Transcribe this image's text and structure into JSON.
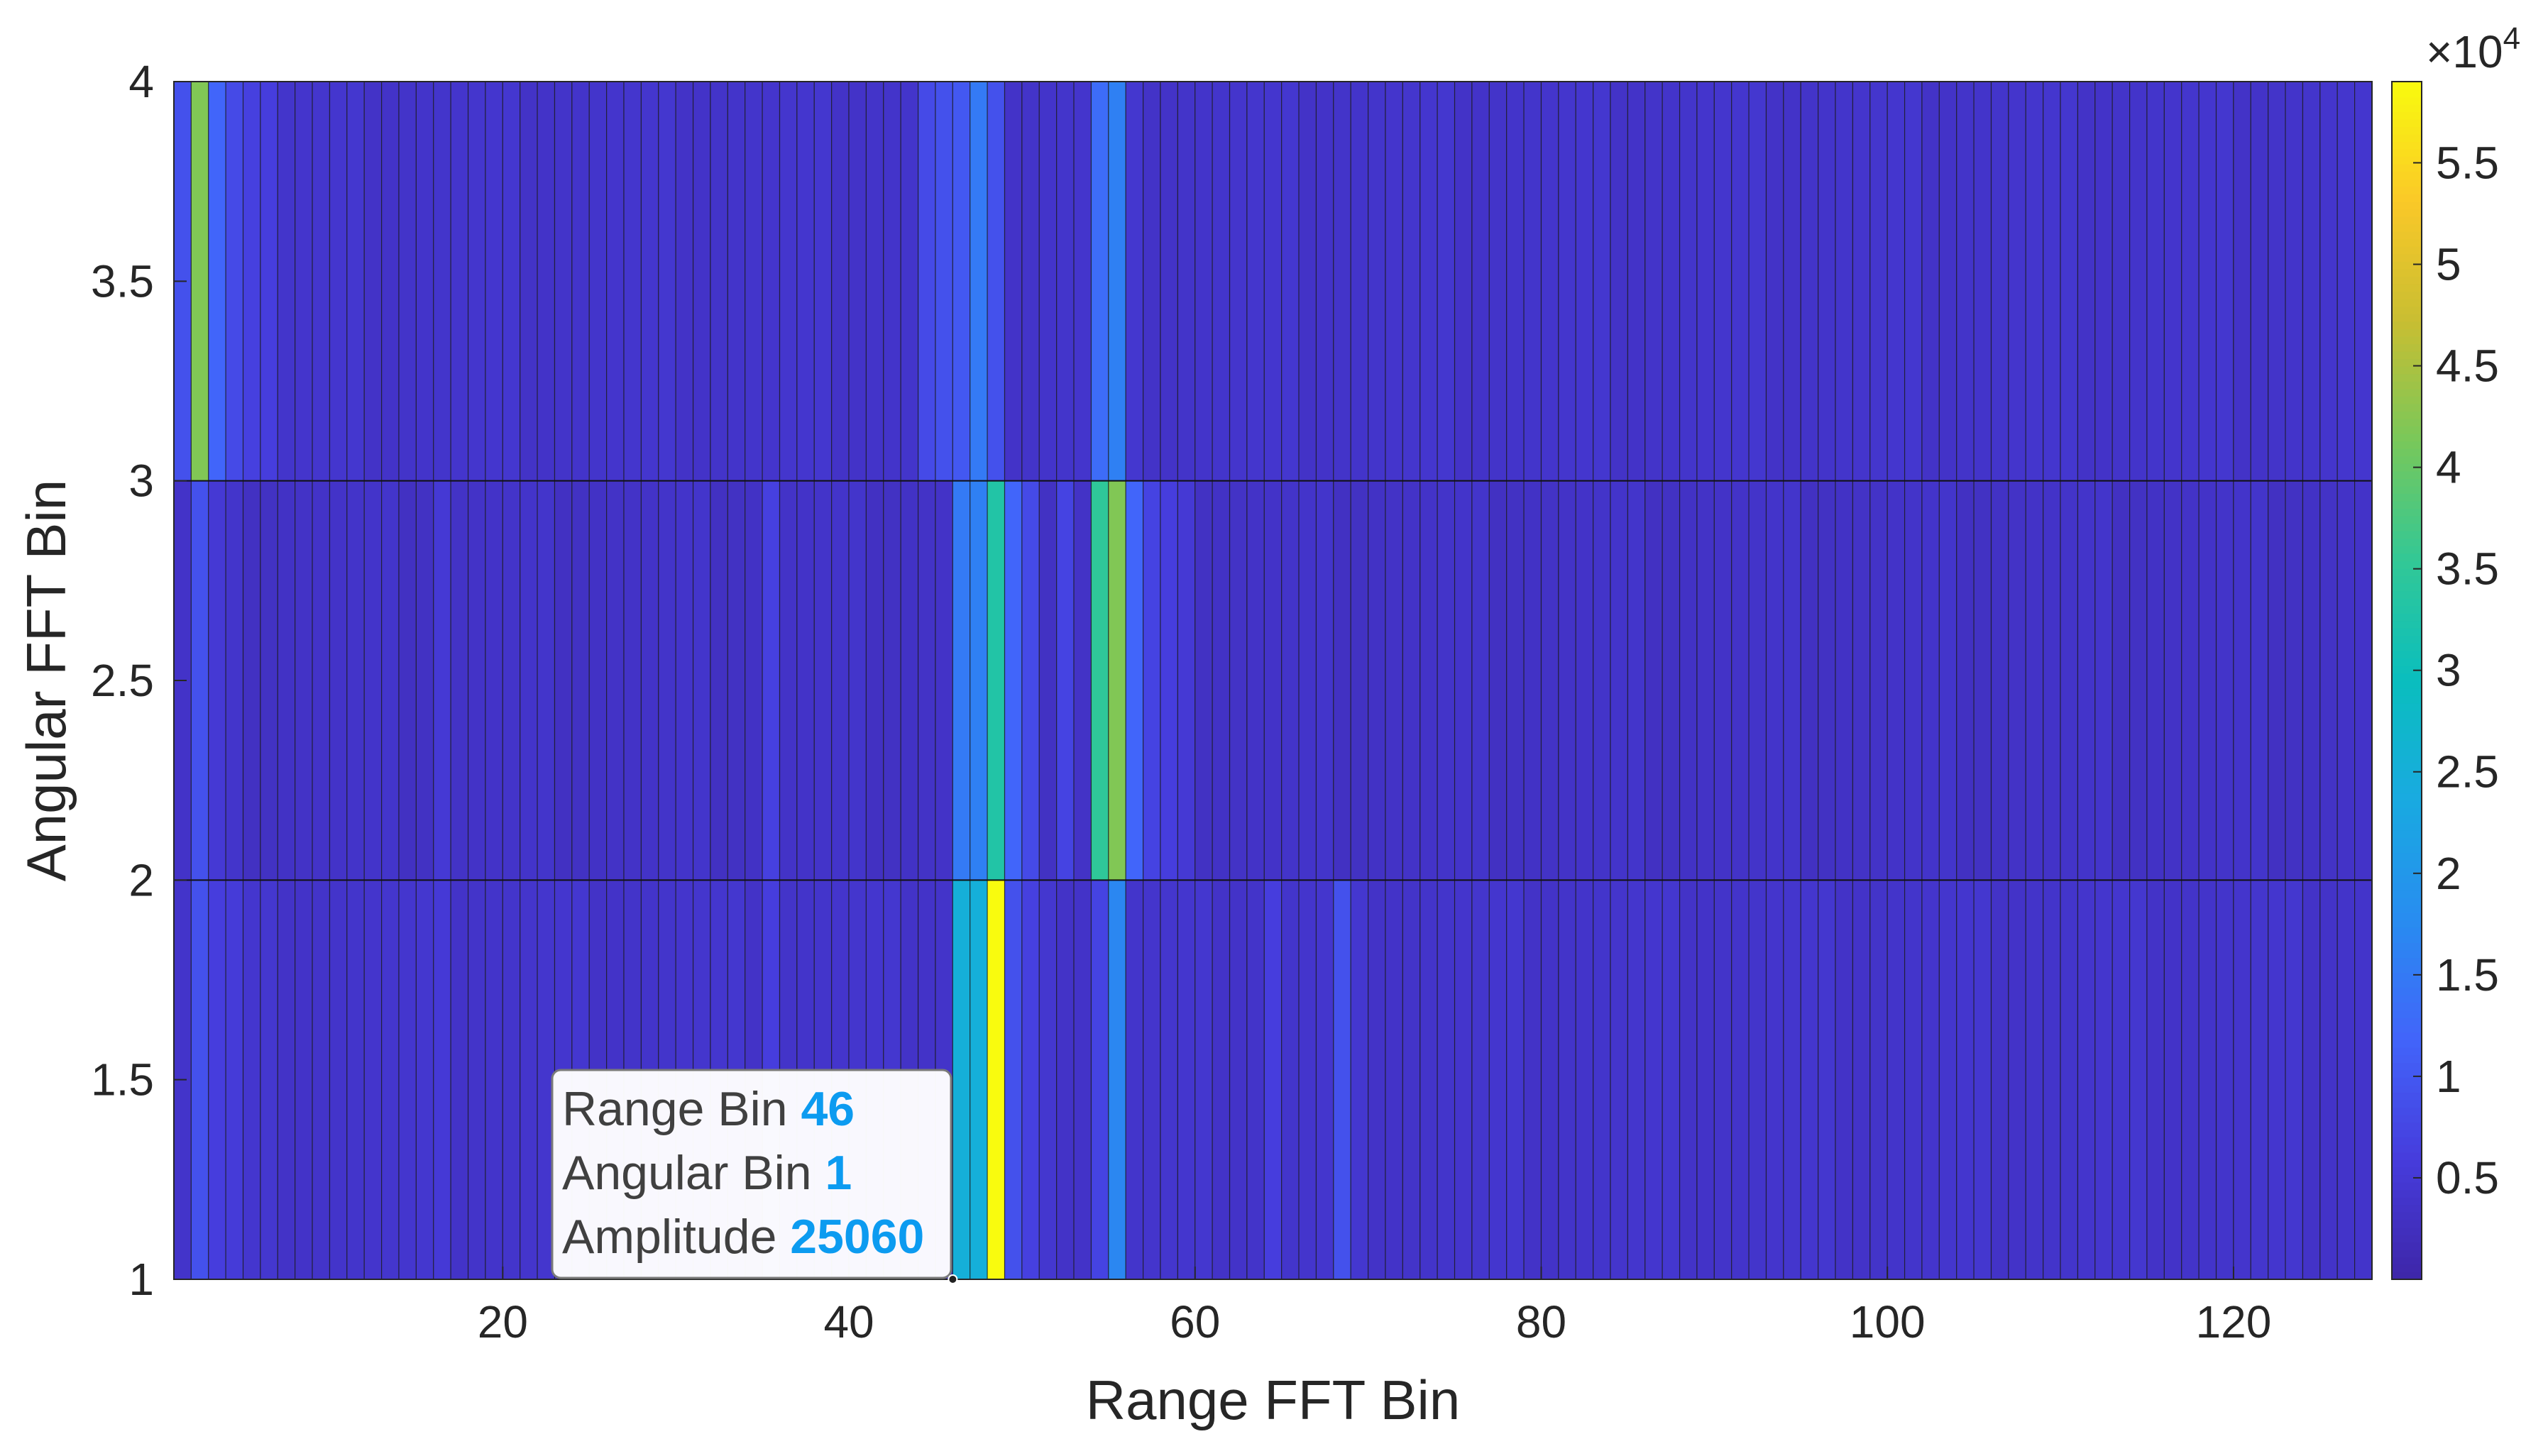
{
  "chart_data": {
    "type": "heatmap",
    "title": "",
    "xlabel": "Range FFT Bin",
    "ylabel": "Angular FFT Bin",
    "xlim": [
      1,
      128
    ],
    "ylim": [
      1,
      4
    ],
    "xticks": [
      "20",
      "40",
      "60",
      "80",
      "100",
      "120"
    ],
    "xtick_values": [
      20,
      40,
      60,
      80,
      100,
      120
    ],
    "yticks": [
      "1",
      "1.5",
      "2",
      "2.5",
      "3",
      "3.5",
      "4"
    ],
    "ytick_values": [
      1,
      1.5,
      2,
      2.5,
      3,
      3.5,
      4
    ],
    "rows": [
      {
        "angular_bin": 1,
        "base_amplitude": 3500,
        "peaks": [
          {
            "range_bin": 2,
            "amplitude": 9000
          },
          {
            "range_bin": 3,
            "amplitude": 6000
          },
          {
            "range_bin": 4,
            "amplitude": 5500
          },
          {
            "range_bin": 16,
            "amplitude": 5200
          },
          {
            "range_bin": 35,
            "amplitude": 6000
          },
          {
            "range_bin": 46,
            "amplitude": 25060
          },
          {
            "range_bin": 47,
            "amplitude": 25000
          },
          {
            "range_bin": 48,
            "amplitude": 59000
          },
          {
            "range_bin": 49,
            "amplitude": 9000
          },
          {
            "range_bin": 50,
            "amplitude": 6500
          },
          {
            "range_bin": 54,
            "amplitude": 7000
          },
          {
            "range_bin": 55,
            "amplitude": 17000
          },
          {
            "range_bin": 64,
            "amplitude": 6000
          },
          {
            "range_bin": 68,
            "amplitude": 9000
          }
        ]
      },
      {
        "angular_bin": 2,
        "base_amplitude": 3000,
        "peaks": [
          {
            "range_bin": 2,
            "amplitude": 9000
          },
          {
            "range_bin": 3,
            "amplitude": 5000
          },
          {
            "range_bin": 16,
            "amplitude": 5000
          },
          {
            "range_bin": 35,
            "amplitude": 6500
          },
          {
            "range_bin": 46,
            "amplitude": 15000
          },
          {
            "range_bin": 47,
            "amplitude": 16000
          },
          {
            "range_bin": 48,
            "amplitude": 33000
          },
          {
            "range_bin": 49,
            "amplitude": 12000
          },
          {
            "range_bin": 50,
            "amplitude": 8000
          },
          {
            "range_bin": 52,
            "amplitude": 7000
          },
          {
            "range_bin": 54,
            "amplitude": 35000
          },
          {
            "range_bin": 55,
            "amplitude": 42000
          },
          {
            "range_bin": 56,
            "amplitude": 12000
          },
          {
            "range_bin": 57,
            "amplitude": 7000
          },
          {
            "range_bin": 58,
            "amplitude": 6000
          },
          {
            "range_bin": 59,
            "amplitude": 5000
          }
        ]
      },
      {
        "angular_bin": 3,
        "base_amplitude": 3500,
        "peaks": [
          {
            "range_bin": 1,
            "amplitude": 9000
          },
          {
            "range_bin": 2,
            "amplitude": 42000
          },
          {
            "range_bin": 3,
            "amplitude": 12000
          },
          {
            "range_bin": 4,
            "amplitude": 8000
          },
          {
            "range_bin": 5,
            "amplitude": 6500
          },
          {
            "range_bin": 6,
            "amplitude": 6000
          },
          {
            "range_bin": 44,
            "amplitude": 8000
          },
          {
            "range_bin": 45,
            "amplitude": 9000
          },
          {
            "range_bin": 46,
            "amplitude": 10000
          },
          {
            "range_bin": 47,
            "amplitude": 15000
          },
          {
            "range_bin": 48,
            "amplitude": 9000
          },
          {
            "range_bin": 54,
            "amplitude": 13000
          },
          {
            "range_bin": 55,
            "amplitude": 16000
          }
        ]
      }
    ],
    "colorbar": {
      "min": 0,
      "max": 59000,
      "exponent_label": "×10",
      "exponent_power": "4",
      "ticks": [
        "0.5",
        "1",
        "1.5",
        "2",
        "2.5",
        "3",
        "3.5",
        "4",
        "4.5",
        "5",
        "5.5"
      ],
      "tick_values": [
        0.5,
        1,
        1.5,
        2,
        2.5,
        3,
        3.5,
        4,
        4.5,
        5,
        5.5
      ],
      "colormap": "parula"
    },
    "datatip": {
      "lines": [
        {
          "label": "Range Bin",
          "value": "46"
        },
        {
          "label": "Angular Bin",
          "value": "1"
        },
        {
          "label": "Amplitude",
          "value": "25060"
        }
      ],
      "x": 46,
      "y": 1
    }
  }
}
